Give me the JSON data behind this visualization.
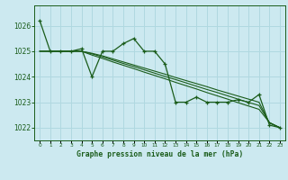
{
  "background_color": "#cce9f0",
  "grid_color": "#b0d8e0",
  "line_color": "#1a5c1a",
  "title": "Graphe pression niveau de la mer (hPa)",
  "xlim": [
    -0.5,
    23.5
  ],
  "ylim": [
    1021.5,
    1026.8
  ],
  "yticks": [
    1022,
    1023,
    1024,
    1025,
    1026
  ],
  "xticks": [
    0,
    1,
    2,
    3,
    4,
    5,
    6,
    7,
    8,
    9,
    10,
    11,
    12,
    13,
    14,
    15,
    16,
    17,
    18,
    19,
    20,
    21,
    22,
    23
  ],
  "series_main": [
    1026.2,
    1025.0,
    1025.0,
    1025.0,
    1025.1,
    1024.0,
    1025.0,
    1025.0,
    1025.3,
    1025.5,
    1025.0,
    1025.0,
    1024.5,
    1023.0,
    1023.0,
    1023.2,
    1023.0,
    1023.0,
    1023.0,
    1023.1,
    1023.0,
    1023.3,
    1022.1,
    1022.0
  ],
  "series_trend": [
    [
      1025.0,
      1025.0,
      1025.0,
      1025.0,
      1025.0,
      1024.85,
      1024.72,
      1024.58,
      1024.45,
      1024.32,
      1024.18,
      1024.05,
      1023.92,
      1023.78,
      1023.65,
      1023.52,
      1023.38,
      1023.25,
      1023.12,
      1022.98,
      1022.85,
      1022.72,
      1022.2,
      1022.0
    ],
    [
      1025.0,
      1025.0,
      1025.0,
      1025.0,
      1025.0,
      1024.9,
      1024.78,
      1024.65,
      1024.52,
      1024.4,
      1024.27,
      1024.14,
      1024.01,
      1023.89,
      1023.76,
      1023.63,
      1023.5,
      1023.38,
      1023.25,
      1023.12,
      1022.99,
      1022.87,
      1022.2,
      1022.0
    ],
    [
      1025.0,
      1025.0,
      1025.0,
      1025.0,
      1025.0,
      1024.92,
      1024.82,
      1024.7,
      1024.58,
      1024.46,
      1024.34,
      1024.22,
      1024.1,
      1023.97,
      1023.85,
      1023.73,
      1023.61,
      1023.48,
      1023.36,
      1023.24,
      1023.12,
      1023.0,
      1022.18,
      1022.0
    ]
  ]
}
